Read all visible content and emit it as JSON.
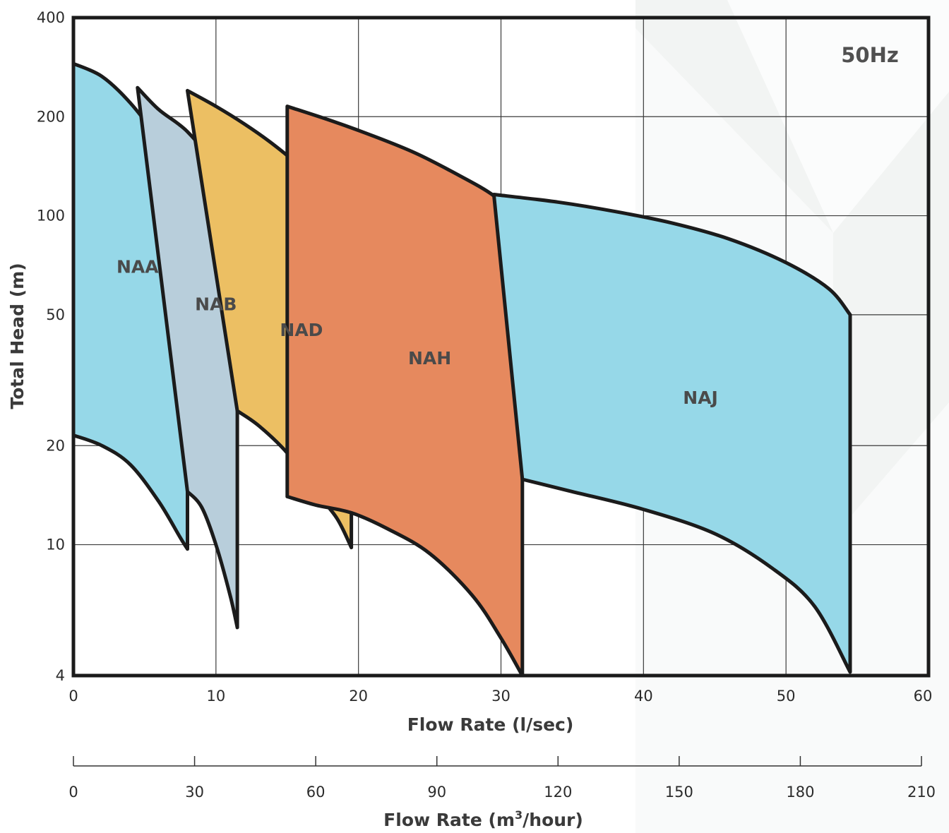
{
  "chart_data": {
    "type": "area",
    "frequency_label": "50Hz",
    "xlabel": "Flow Rate (l/sec)",
    "ylabel": "Total Head (m)",
    "x_ticks": [
      "0",
      "10",
      "20",
      "30",
      "40",
      "50",
      "60"
    ],
    "xlim": [
      0,
      60
    ],
    "y_ticks": [
      "400",
      "200",
      "100",
      "50",
      "20",
      "10",
      "4"
    ],
    "ylim": [
      4,
      400
    ],
    "y_scale": "log",
    "grid": true,
    "secondary_x_axis": {
      "label_prefix": "Flow Rate (m",
      "label_sup": "3",
      "label_suffix": "/hour)",
      "ticks": [
        "0",
        "30",
        "60",
        "90",
        "120",
        "150",
        "180",
        "210"
      ],
      "xlim": [
        0,
        210
      ]
    },
    "regions": [
      {
        "name": "NAA",
        "color": "#96d8e8",
        "label_pos": [
          4.5,
          70
        ],
        "top": [
          [
            0,
            290
          ],
          [
            2,
            265
          ],
          [
            4,
            220
          ],
          [
            6,
            170
          ],
          [
            7.5,
            135
          ],
          [
            8,
            120
          ]
        ],
        "bottom": [
          [
            0,
            21.5
          ],
          [
            2,
            20
          ],
          [
            4,
            17.5
          ],
          [
            6,
            13.5
          ],
          [
            7.5,
            10.5
          ],
          [
            8,
            9.7
          ]
        ]
      },
      {
        "name": "NAB",
        "color": "#b8cedb",
        "label_pos": [
          10,
          54
        ],
        "top": [
          [
            4.5,
            245
          ],
          [
            6,
            210
          ],
          [
            8,
            180
          ],
          [
            10,
            140
          ],
          [
            11.5,
            100
          ]
        ],
        "bottom": [
          [
            8,
            14.5
          ],
          [
            9,
            13
          ],
          [
            10,
            10
          ],
          [
            11,
            7
          ],
          [
            11.5,
            5.6
          ]
        ]
      },
      {
        "name": "NAD",
        "color": "#ecbf63",
        "label_pos": [
          16,
          45
        ],
        "top": [
          [
            8,
            240
          ],
          [
            10,
            215
          ],
          [
            12,
            190
          ],
          [
            14,
            165
          ],
          [
            16,
            140
          ],
          [
            18,
            115
          ],
          [
            19.5,
            92
          ]
        ],
        "bottom": [
          [
            11.5,
            25.5
          ],
          [
            13,
            23
          ],
          [
            15,
            19
          ],
          [
            17,
            14.5
          ],
          [
            18.5,
            12
          ],
          [
            19.5,
            9.8
          ]
        ]
      },
      {
        "name": "NAH",
        "color": "#e6895e",
        "label_pos": [
          25,
          37
        ],
        "top": [
          [
            15,
            215
          ],
          [
            18,
            195
          ],
          [
            21,
            175
          ],
          [
            24,
            155
          ],
          [
            27,
            133
          ],
          [
            29.5,
            115
          ],
          [
            31.5,
            96
          ]
        ],
        "bottom": [
          [
            15,
            14
          ],
          [
            17,
            13.2
          ],
          [
            19.5,
            12.5
          ],
          [
            22,
            11.2
          ],
          [
            25,
            9.4
          ],
          [
            28,
            7
          ],
          [
            30,
            5.2
          ],
          [
            31.5,
            4
          ]
        ]
      },
      {
        "name": "NAJ",
        "color": "#96d8e8",
        "label_pos": [
          44,
          28
        ],
        "top": [
          [
            29.5,
            116
          ],
          [
            34,
            110
          ],
          [
            38,
            103
          ],
          [
            42,
            95
          ],
          [
            46,
            85
          ],
          [
            50,
            72
          ],
          [
            53,
            60
          ],
          [
            54.5,
            50
          ]
        ],
        "bottom": [
          [
            31.5,
            15.8
          ],
          [
            35,
            14.5
          ],
          [
            40,
            12.8
          ],
          [
            45,
            10.8
          ],
          [
            49,
            8.5
          ],
          [
            52,
            6.5
          ],
          [
            54.5,
            4.1
          ]
        ]
      }
    ]
  }
}
